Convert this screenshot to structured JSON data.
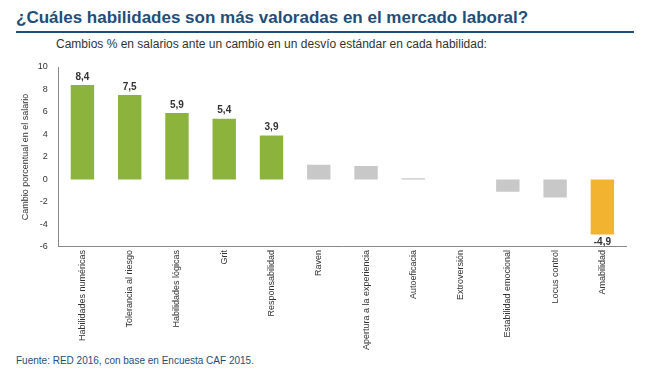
{
  "chart_data": {
    "type": "bar",
    "title": "¿Cuáles habilidades son más valoradas en el mercado laboral?",
    "subtitle": "Cambios % en salarios ante un cambio en un desvío estándar en cada habilidad:",
    "y_label": "Cambio porcentual en el salario",
    "source": "Fuente: RED 2016, con base en Encuesta CAF 2015.",
    "categories": [
      "Habilidades numéricas",
      "Tolerancia al riesgo",
      "Habilidades lógicas",
      "Grit",
      "Responsabilidad",
      "Raven",
      "Apertura a la experiencia",
      "Autoeficacia",
      "Extroversión",
      "Estabilidad emocional",
      "Locus control",
      "Amabilidad"
    ],
    "values": [
      8.4,
      7.5,
      5.9,
      5.4,
      3.9,
      1.3,
      1.2,
      0.1,
      0,
      -1.1,
      -1.6,
      -4.9
    ],
    "value_labels": [
      "8,4",
      "7,5",
      "5,9",
      "5,4",
      "3,9",
      null,
      null,
      null,
      null,
      null,
      null,
      "-4,9"
    ],
    "data_labels": true,
    "colors": [
      "#8cb33c",
      "#8cb33c",
      "#8cb33c",
      "#8cb33c",
      "#8cb33c",
      "#c8c8c8",
      "#c8c8c8",
      "#c8c8c8",
      "#c8c8c8",
      "#c8c8c8",
      "#c8c8c8",
      "#f2b430"
    ],
    "ylim": [
      -6,
      10
    ],
    "yticks": [
      -6,
      -4,
      -2,
      0,
      2,
      4,
      6,
      8,
      10
    ],
    "grid": false
  }
}
